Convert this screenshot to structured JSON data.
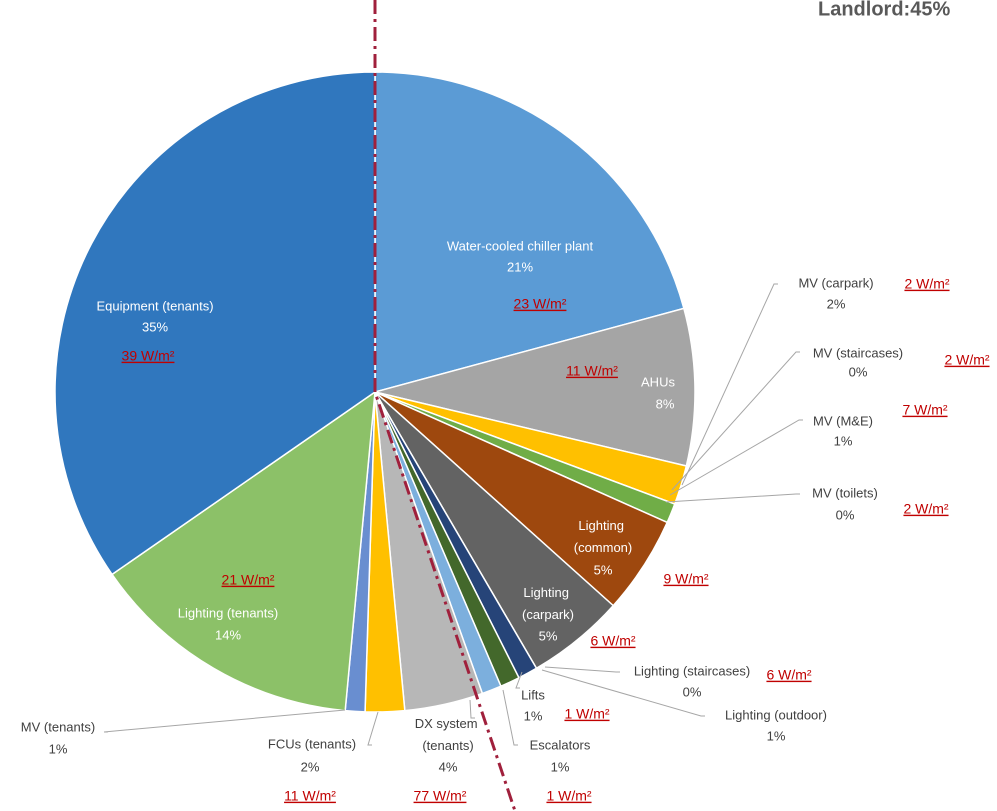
{
  "chart_data": {
    "type": "pie",
    "title": "Landlord:45%",
    "categories": [
      "Water-cooled chiller plant",
      "AHUs",
      "MV (carpark)",
      "MV (staircases)",
      "MV (M&E)",
      "MV (toilets)",
      "Lighting (common)",
      "Lighting (carpark)",
      "Lighting (staircases)",
      "Lighting (outdoor)",
      "Lifts",
      "Escalators",
      "DX system (tenants)",
      "FCUs (tenants)",
      "MV (tenants)",
      "Lighting (tenants)",
      "Equipment (tenants)"
    ],
    "values": [
      21,
      8,
      2,
      0,
      1,
      0,
      5,
      5,
      0,
      1,
      1,
      1,
      4,
      2,
      1,
      14,
      35
    ],
    "value_labels": [
      "21%",
      "8%",
      "2%",
      "0%",
      "1%",
      "0%",
      "5%",
      "5%",
      "0%",
      "1%",
      "1%",
      "1%",
      "4%",
      "2%",
      "1%",
      "14%",
      "35%"
    ],
    "colors": [
      "#5b9bd5",
      "#a5a5a5",
      "#ffc000",
      "#4472c4",
      "#70ad47",
      "#255e91",
      "#9e480e",
      "#636363",
      "#997300",
      "#264478",
      "#43682b",
      "#7cafdd",
      "#b7b7b7",
      "#ffc000",
      "#698ed0",
      "#8cc168",
      "#3077be"
    ],
    "intensity_labels": [
      "23 W/m²",
      "11 W/m²",
      "2 W/m²",
      "2 W/m²",
      "7 W/m²",
      "2 W/m²",
      "9 W/m²",
      "6 W/m²",
      "6 W/m²",
      null,
      "1 W/m²",
      "1 W/m²",
      "77 W/m²",
      "11 W/m²",
      null,
      "21 W/m²",
      "39 W/m²"
    ]
  }
}
